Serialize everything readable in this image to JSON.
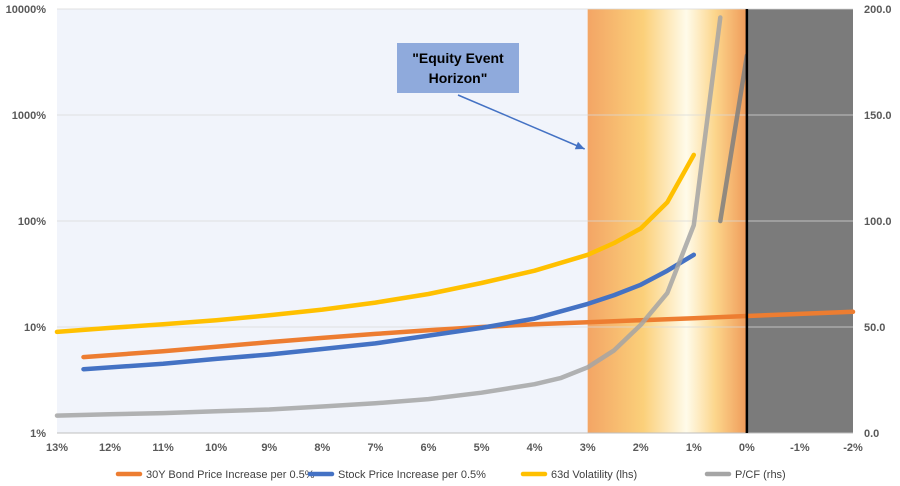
{
  "chart_data": {
    "type": "line",
    "title": "",
    "x_ticks": [
      "13%",
      "12%",
      "11%",
      "10%",
      "9%",
      "8%",
      "7%",
      "6%",
      "5%",
      "4%",
      "3%",
      "2%",
      "1%",
      "0%",
      "-1%",
      "-2%"
    ],
    "xlim": [
      13,
      -2
    ],
    "x_reversed": true,
    "left_axis": {
      "scale": "log",
      "ylim": [
        1,
        10000
      ],
      "ticks": [
        "1%",
        "10%",
        "100%",
        "1000%",
        "10000%"
      ]
    },
    "right_axis": {
      "scale": "linear",
      "ylim": [
        0,
        200
      ],
      "ticks": [
        "0.0",
        "50.0",
        "100.0",
        "150.0",
        "200.0"
      ]
    },
    "series": [
      {
        "name": "30Y Bond Price Increase per 0.5%",
        "axis": "left",
        "color": "#ED7D31",
        "x": [
          12.5,
          11,
          10,
          9,
          8,
          7,
          6,
          5,
          4,
          3,
          2,
          1,
          0,
          -1,
          -2
        ],
        "y": [
          5.2,
          5.9,
          6.5,
          7.2,
          7.9,
          8.6,
          9.3,
          10.0,
          10.6,
          11.1,
          11.6,
          12.1,
          12.7,
          13.3,
          13.9
        ]
      },
      {
        "name": "Stock Price Increase per 0.5%",
        "axis": "left",
        "color": "#4472C4",
        "x": [
          12.5,
          11,
          10,
          9,
          8,
          7,
          6,
          5,
          4,
          3,
          2.5,
          2,
          1.5,
          1
        ],
        "y": [
          4.0,
          4.5,
          5.0,
          5.5,
          6.2,
          7.0,
          8.3,
          9.8,
          12.0,
          16.5,
          20,
          25,
          34,
          48
        ]
      },
      {
        "name": "63d Volatility (lhs)",
        "axis": "left",
        "color": "#FFC000",
        "x": [
          13,
          12,
          11,
          10,
          9,
          8,
          7,
          6,
          5,
          4,
          3,
          2.5,
          2,
          1.5,
          1
        ],
        "y": [
          9.0,
          9.8,
          10.6,
          11.6,
          12.9,
          14.6,
          17.0,
          20.5,
          26,
          34,
          48,
          62,
          85,
          150,
          420
        ]
      },
      {
        "name": "P/CF (rhs)",
        "axis": "right",
        "color": "#A5A5A5",
        "x": [
          13,
          12,
          11,
          10,
          9,
          8,
          7,
          6,
          5,
          4,
          3.5,
          3,
          2.5,
          2,
          1.5,
          1,
          0.5
        ],
        "y": [
          8.2,
          8.8,
          9.4,
          10.3,
          11.1,
          12.5,
          14.0,
          16.0,
          19.0,
          23.0,
          26.0,
          31.0,
          39.0,
          51.0,
          66.0,
          98.0,
          196.0
        ]
      },
      {
        "name": "",
        "axis": "right",
        "color": "#7F7F7F",
        "x": [
          0.5,
          0
        ],
        "y": [
          100.0,
          178.0
        ]
      }
    ],
    "regions": [
      {
        "name": "event-horizon-gradient",
        "x_from": 3,
        "x_to": 0
      },
      {
        "name": "negative-rates-zone",
        "x_from": 0,
        "x_to": -2,
        "color": "#7B7B7B"
      }
    ],
    "vertical_line_x": 0,
    "annotation": {
      "text": "\"Equity Event Horizon\"",
      "lines": [
        "\"Equity Event",
        "Horizon\""
      ],
      "arrow_to_x": 3
    },
    "legend": "bottom"
  }
}
